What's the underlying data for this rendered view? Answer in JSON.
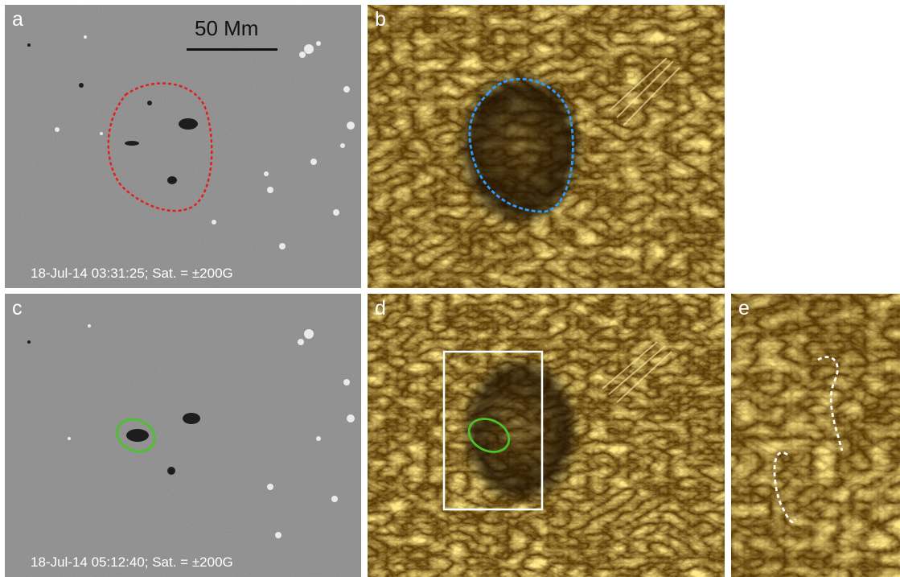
{
  "panels": {
    "a": {
      "label": "a",
      "caption": "18-Jul-14 03:31:25; Sat. = ±200G",
      "scale_label": "50 Mm"
    },
    "b": {
      "label": "b"
    },
    "c": {
      "label": "c",
      "caption": "18-Jul-14 05:12:40; Sat. = ±200G"
    },
    "d": {
      "label": "d"
    },
    "e": {
      "label": "e"
    }
  },
  "colors": {
    "magnetogram_gray": "#8a8a8a",
    "aia_gold": "#b8860b",
    "red_contour": "#e02020",
    "blue_contour": "#2e9bff",
    "green_contour": "#4cc22a",
    "box": "#ffffff"
  }
}
